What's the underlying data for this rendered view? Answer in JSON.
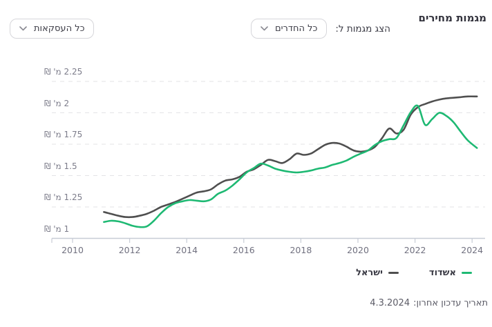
{
  "header": {
    "title": "מגמות מחירים"
  },
  "controls": {
    "label": "הצג מגמות ל:",
    "rooms_dropdown": {
      "value": "כל החדרים",
      "icon": "chevron-down-icon"
    },
    "deals_dropdown": {
      "value": "כל העסקאות",
      "icon": "chevron-down-icon"
    }
  },
  "footer": {
    "last_update_label": "תאריך עדכון אחרון:",
    "last_update_date": "4.3.2024"
  },
  "colors": {
    "accent_green": "#1eb973",
    "line_gray": "#4f4f4f",
    "grid": "#e3e3e6",
    "axis": "#c7ccd6",
    "y_label": "#7c7c8a",
    "x_label": "#70707f"
  },
  "chart_data": {
    "type": "line",
    "title": "מגמות מחירים",
    "x_unit": "year",
    "x_ticks": [
      2010,
      2012,
      2014,
      2016,
      2018,
      2020,
      2022,
      2024
    ],
    "x_range": [
      2009.3,
      2024.45
    ],
    "y_range": [
      1.0,
      2.4
    ],
    "y_ticks": [
      {
        "value": 1,
        "label": "1 מ' ₪"
      },
      {
        "value": 1.25,
        "label": "1.25 מ' ₪"
      },
      {
        "value": 1.5,
        "label": "1.5 מ' ₪"
      },
      {
        "value": 1.75,
        "label": "1.75 מ' ₪"
      },
      {
        "value": 2,
        "label": "2 מ' ₪"
      },
      {
        "value": 2.25,
        "label": "2.25 מ' ₪"
      }
    ],
    "unit_suffix": "מ' ₪",
    "legend_position": "bottom-right",
    "grid": "horizontal-dashed",
    "x": [
      2011.1,
      2011.35,
      2011.6,
      2011.85,
      2012.1,
      2012.35,
      2012.6,
      2012.85,
      2013.1,
      2013.35,
      2013.6,
      2013.85,
      2014.1,
      2014.35,
      2014.6,
      2014.85,
      2015.1,
      2015.35,
      2015.6,
      2015.85,
      2016.1,
      2016.35,
      2016.6,
      2016.85,
      2017.1,
      2017.35,
      2017.6,
      2017.85,
      2018.1,
      2018.35,
      2018.6,
      2018.85,
      2019.1,
      2019.35,
      2019.6,
      2019.85,
      2020.1,
      2020.35,
      2020.6,
      2020.85,
      2021.1,
      2021.35,
      2021.6,
      2021.85,
      2022.1,
      2022.35,
      2022.6,
      2022.85,
      2023.1,
      2023.35,
      2023.6,
      2023.85,
      2024.17
    ],
    "series": [
      {
        "name": "אשדוד",
        "slug": "ashdod",
        "color": "#1eb973",
        "values": [
          1.13,
          1.14,
          1.135,
          1.12,
          1.1,
          1.09,
          1.095,
          1.14,
          1.2,
          1.25,
          1.28,
          1.295,
          1.305,
          1.3,
          1.295,
          1.31,
          1.355,
          1.38,
          1.42,
          1.47,
          1.525,
          1.56,
          1.595,
          1.58,
          1.555,
          1.54,
          1.53,
          1.525,
          1.53,
          1.54,
          1.555,
          1.565,
          1.585,
          1.6,
          1.62,
          1.65,
          1.675,
          1.7,
          1.745,
          1.775,
          1.79,
          1.8,
          1.9,
          2.005,
          2.055,
          1.905,
          1.95,
          2.0,
          1.975,
          1.925,
          1.85,
          1.78,
          1.72
        ]
      },
      {
        "name": "ישראל",
        "slug": "israel",
        "color": "#4f4f4f",
        "values": [
          1.21,
          1.195,
          1.18,
          1.17,
          1.17,
          1.18,
          1.195,
          1.22,
          1.25,
          1.27,
          1.29,
          1.315,
          1.34,
          1.365,
          1.375,
          1.39,
          1.43,
          1.46,
          1.47,
          1.49,
          1.53,
          1.55,
          1.585,
          1.625,
          1.615,
          1.6,
          1.63,
          1.675,
          1.665,
          1.675,
          1.71,
          1.745,
          1.76,
          1.755,
          1.73,
          1.7,
          1.69,
          1.7,
          1.73,
          1.8,
          1.875,
          1.835,
          1.865,
          1.985,
          2.045,
          2.07,
          2.09,
          2.105,
          2.115,
          2.12,
          2.125,
          2.13,
          2.13
        ]
      }
    ]
  }
}
